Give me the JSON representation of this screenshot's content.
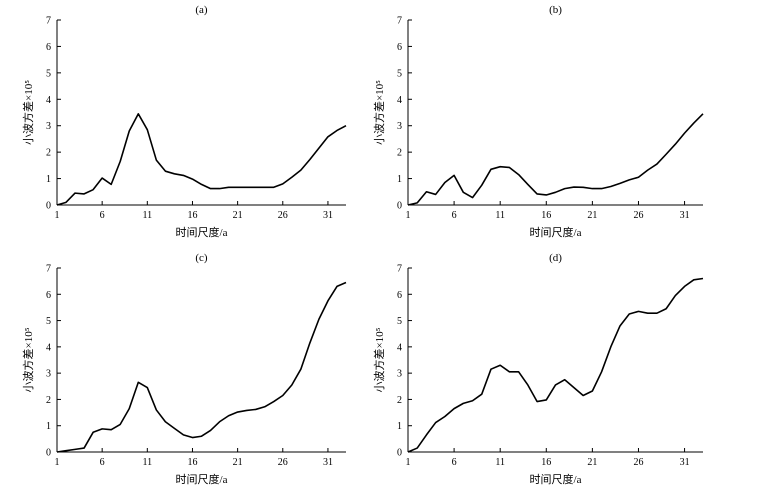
{
  "chart_data": [
    {
      "type": "line",
      "panel_label": "(a)",
      "xlabel": "时间尺度/a",
      "ylabel": "小波方差×10⁵",
      "xlim": [
        1,
        33
      ],
      "ylim": [
        0,
        7
      ],
      "xticks": [
        1,
        6,
        11,
        16,
        21,
        26,
        31
      ],
      "yticks": [
        0,
        1,
        2,
        3,
        4,
        5,
        6,
        7
      ],
      "grid": false,
      "x": [
        1,
        2,
        3,
        4,
        5,
        6,
        7,
        8,
        9,
        10,
        11,
        12,
        13,
        14,
        15,
        16,
        17,
        18,
        19,
        20,
        21,
        22,
        23,
        24,
        25,
        26,
        27,
        28,
        29,
        30,
        31,
        32,
        33
      ],
      "values": [
        0.0,
        0.1,
        0.45,
        0.42,
        0.58,
        1.02,
        0.78,
        1.65,
        2.8,
        3.45,
        2.85,
        1.7,
        1.28,
        1.18,
        1.12,
        0.98,
        0.78,
        0.62,
        0.62,
        0.67,
        0.67,
        0.67,
        0.67,
        0.67,
        0.67,
        0.8,
        1.05,
        1.32,
        1.72,
        2.15,
        2.58,
        2.82,
        3.0
      ]
    },
    {
      "type": "line",
      "panel_label": "(b)",
      "xlabel": "时间尺度/a",
      "ylabel": "小波方差×10⁵",
      "xlim": [
        1,
        33
      ],
      "ylim": [
        0,
        7
      ],
      "xticks": [
        1,
        6,
        11,
        16,
        21,
        26,
        31
      ],
      "yticks": [
        0,
        1,
        2,
        3,
        4,
        5,
        6,
        7
      ],
      "grid": false,
      "x": [
        1,
        2,
        3,
        4,
        5,
        6,
        7,
        8,
        9,
        10,
        11,
        12,
        13,
        14,
        15,
        16,
        17,
        18,
        19,
        20,
        21,
        22,
        23,
        24,
        25,
        26,
        27,
        28,
        29,
        30,
        31,
        32,
        33
      ],
      "values": [
        0.0,
        0.08,
        0.5,
        0.4,
        0.85,
        1.12,
        0.48,
        0.28,
        0.75,
        1.35,
        1.45,
        1.42,
        1.15,
        0.78,
        0.42,
        0.38,
        0.48,
        0.62,
        0.68,
        0.67,
        0.62,
        0.62,
        0.7,
        0.82,
        0.95,
        1.05,
        1.32,
        1.55,
        1.92,
        2.3,
        2.72,
        3.1,
        3.45
      ]
    },
    {
      "type": "line",
      "panel_label": "(c)",
      "xlabel": "时间尺度/a",
      "ylabel": "小波方差×10⁵",
      "xlim": [
        1,
        33
      ],
      "ylim": [
        0,
        7
      ],
      "xticks": [
        1,
        6,
        11,
        16,
        21,
        26,
        31
      ],
      "yticks": [
        0,
        1,
        2,
        3,
        4,
        5,
        6,
        7
      ],
      "grid": false,
      "x": [
        1,
        2,
        3,
        4,
        5,
        6,
        7,
        8,
        9,
        10,
        11,
        12,
        13,
        14,
        15,
        16,
        17,
        18,
        19,
        20,
        21,
        22,
        23,
        24,
        25,
        26,
        27,
        28,
        29,
        30,
        31,
        32,
        33
      ],
      "values": [
        0.0,
        0.05,
        0.1,
        0.15,
        0.75,
        0.88,
        0.85,
        1.05,
        1.65,
        2.65,
        2.45,
        1.6,
        1.15,
        0.9,
        0.65,
        0.55,
        0.6,
        0.82,
        1.15,
        1.38,
        1.52,
        1.58,
        1.62,
        1.72,
        1.92,
        2.15,
        2.55,
        3.15,
        4.15,
        5.05,
        5.75,
        6.3,
        6.45
      ]
    },
    {
      "type": "line",
      "panel_label": "(d)",
      "xlabel": "时间尺度/a",
      "ylabel": "小波方差×10⁵",
      "xlim": [
        1,
        33
      ],
      "ylim": [
        0,
        7
      ],
      "xticks": [
        1,
        6,
        11,
        16,
        21,
        26,
        31
      ],
      "yticks": [
        0,
        1,
        2,
        3,
        4,
        5,
        6,
        7
      ],
      "grid": false,
      "x": [
        1,
        2,
        3,
        4,
        5,
        6,
        7,
        8,
        9,
        10,
        11,
        12,
        13,
        14,
        15,
        16,
        17,
        18,
        19,
        20,
        21,
        22,
        23,
        24,
        25,
        26,
        27,
        28,
        29,
        30,
        31,
        32,
        33
      ],
      "values": [
        0.0,
        0.15,
        0.65,
        1.12,
        1.35,
        1.65,
        1.85,
        1.95,
        2.2,
        3.15,
        3.3,
        3.05,
        3.05,
        2.55,
        1.92,
        1.98,
        2.55,
        2.75,
        2.45,
        2.15,
        2.32,
        3.05,
        4.0,
        4.8,
        5.25,
        5.35,
        5.28,
        5.28,
        5.45,
        5.95,
        6.3,
        6.55,
        6.6
      ]
    }
  ]
}
